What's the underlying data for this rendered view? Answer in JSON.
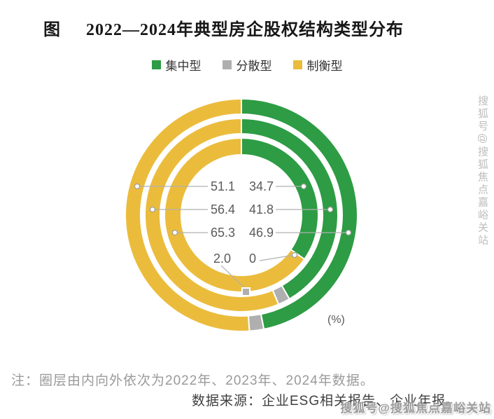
{
  "title_prefix": "图",
  "title_text": "2022—2024年典型房企股权结构类型分布",
  "legend": [
    {
      "label": "集中型",
      "color": "#2E9C44"
    },
    {
      "label": "分散型",
      "color": "#AFAFAF"
    },
    {
      "label": "制衡型",
      "color": "#EBBC3C"
    }
  ],
  "chart_data": {
    "type": "donut-multi-ring",
    "title": "2022—2024年典型房企股权结构类型分布",
    "unit_label": "(%)",
    "categories": [
      "集中型",
      "分散型",
      "制衡型"
    ],
    "colors": [
      "#2E9C44",
      "#AFAFAF",
      "#EBBC3C"
    ],
    "ring_order_note": "圈层由内向外依次为2022年、2023年、2024年",
    "rings": [
      {
        "year": "2022",
        "position": "inner",
        "values": [
          34.7,
          0,
          65.3
        ]
      },
      {
        "year": "2023",
        "position": "middle",
        "values": [
          41.8,
          2.0,
          56.4
        ]
      },
      {
        "year": "2024",
        "position": "outer",
        "values": [
          46.9,
          2.0,
          51.1
        ]
      }
    ],
    "callouts": {
      "left": [
        "51.1",
        "56.4",
        "65.3"
      ],
      "right": [
        "34.7",
        "41.8",
        "46.9"
      ],
      "bottom_left": "2.0",
      "bottom_right": "0"
    }
  },
  "note": "注：圈层由内向外依次为2022年、2023年、2024年数据。",
  "source": "数据来源：企业ESG相关报告、企业年报。",
  "watermark": "搜狐号@搜狐焦点嘉峪关站"
}
